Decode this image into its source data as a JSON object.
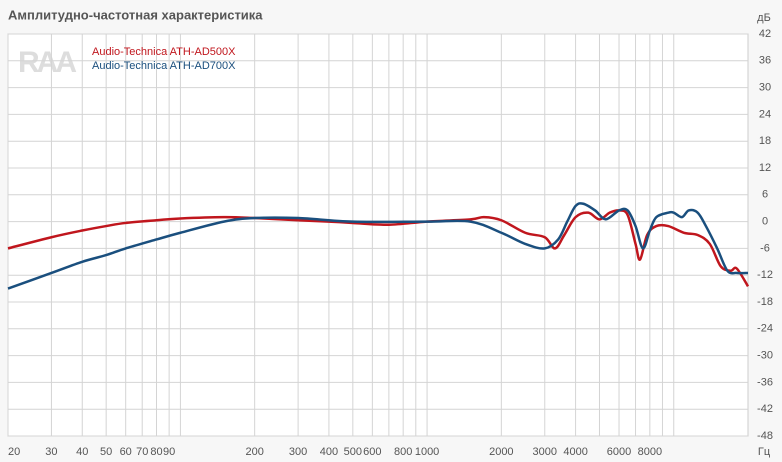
{
  "chart_data": {
    "type": "line",
    "title": "Амплитудно-частотная характеристика",
    "watermark": "RAA",
    "y_unit": "дБ",
    "x_unit": "Гц",
    "log_x": true,
    "grid": true,
    "xlim": [
      20,
      20000
    ],
    "ylim": [
      -48,
      42
    ],
    "xticks": [
      20,
      30,
      40,
      50,
      60,
      70,
      80,
      90,
      200,
      300,
      400,
      500,
      600,
      800,
      1000,
      2000,
      3000,
      4000,
      6000,
      8000
    ],
    "xminor_ticks": [
      100,
      700,
      900,
      5000,
      7000,
      9000,
      10000
    ],
    "yticks": [
      -48,
      -42,
      -36,
      -30,
      -24,
      -18,
      -12,
      -6,
      0,
      6,
      12,
      18,
      24,
      30,
      36,
      42
    ],
    "series": [
      {
        "name": "Audio-Technica ATH-AD500X",
        "color": "#c0161d",
        "x": [
          20,
          30,
          40,
          50,
          60,
          80,
          100,
          150,
          200,
          300,
          400,
          500,
          700,
          1000,
          1500,
          1700,
          2000,
          2500,
          3000,
          3300,
          3600,
          4000,
          4500,
          5000,
          5500,
          6000,
          6500,
          7000,
          7300,
          7800,
          8500,
          9500,
          11000,
          12500,
          14000,
          15500,
          17000,
          18000,
          20000
        ],
        "values": [
          -6,
          -3.5,
          -2,
          -1,
          -0.3,
          0.3,
          0.7,
          1,
          0.8,
          0.3,
          0,
          -0.3,
          -0.7,
          0,
          0.5,
          1,
          0.3,
          -2.5,
          -3.5,
          -6,
          -3,
          1,
          2,
          0.5,
          2,
          2.5,
          1.5,
          -5,
          -8.5,
          -3,
          -1,
          -1,
          -2.5,
          -3,
          -5,
          -10,
          -11,
          -10.5,
          -14.5
        ]
      },
      {
        "name": "Audio-Technica ATH-AD700X",
        "color": "#1a4f7e",
        "x": [
          20,
          30,
          40,
          50,
          60,
          80,
          100,
          150,
          200,
          300,
          500,
          1000,
          1500,
          2000,
          2500,
          3000,
          3400,
          3700,
          4000,
          4300,
          4800,
          5300,
          6000,
          6500,
          7000,
          7500,
          8000,
          8500,
          9500,
          10000,
          10800,
          11500,
          12500,
          13500,
          15000,
          16500,
          18000,
          20000
        ],
        "values": [
          -15,
          -11.5,
          -9,
          -7.5,
          -6,
          -4,
          -2.5,
          0,
          0.8,
          0.8,
          0,
          0,
          0,
          -2.5,
          -5,
          -6,
          -4,
          0,
          3.5,
          4,
          2.5,
          0.5,
          2.5,
          2.5,
          -1,
          -6,
          -2,
          1,
          2,
          2,
          1,
          2.5,
          2,
          -1,
          -6,
          -11,
          -11.5,
          -11.5
        ]
      }
    ]
  }
}
